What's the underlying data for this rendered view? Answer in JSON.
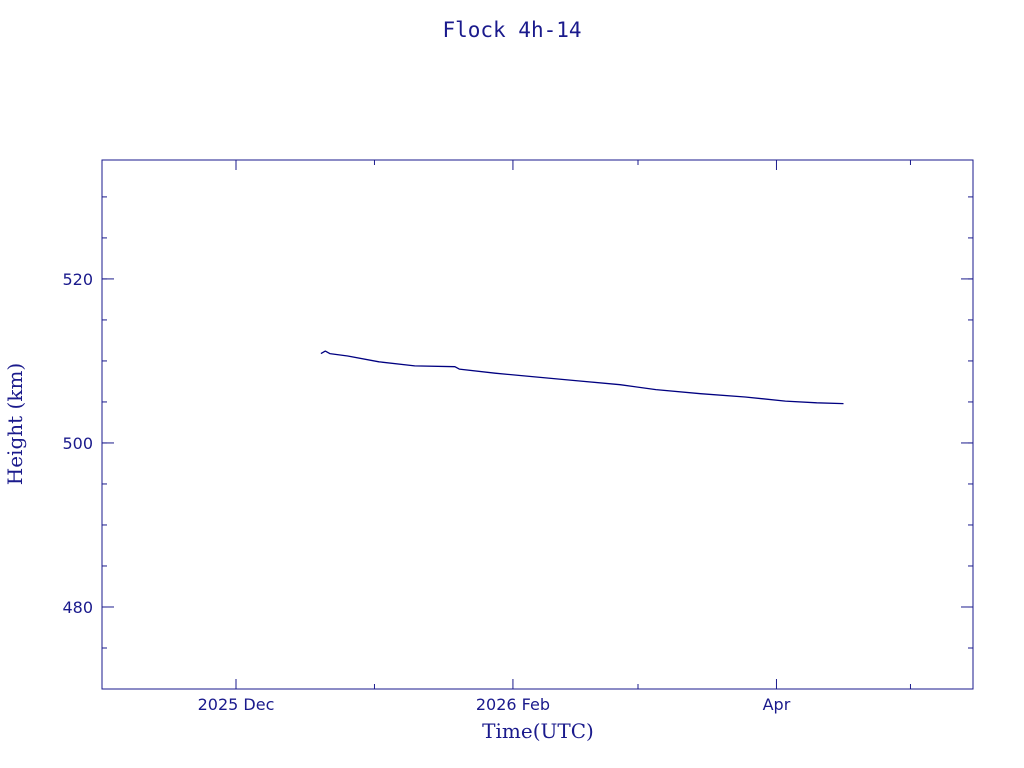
{
  "colors": {
    "axis": "#1a1a8c",
    "series": "#000080",
    "background": "#ffffff"
  },
  "chart_data": {
    "type": "line",
    "title": "Flock 4h-14",
    "xlabel": "Time(UTC)",
    "ylabel": "Height (km)",
    "x_kind": "date",
    "xlim": [
      "2025-11-01",
      "2026-05-15"
    ],
    "ylim": [
      470,
      534.5
    ],
    "x_ticks": [
      {
        "value": "2025-12-01",
        "label": "2025 Dec"
      },
      {
        "value": "2026-02-01",
        "label": "2026 Feb"
      },
      {
        "value": "2026-04-01",
        "label": "Apr"
      }
    ],
    "x_minor_ticks": [
      "2026-01-01",
      "2026-03-01",
      "2026-05-01"
    ],
    "y_ticks": [
      {
        "value": 480,
        "label": "480"
      },
      {
        "value": 500,
        "label": "500"
      },
      {
        "value": 520,
        "label": "520"
      }
    ],
    "y_minor_step": 5,
    "grid": false,
    "series": [
      {
        "x": [
          "2025-12-20",
          "2025-12-21",
          "2025-12-22",
          "2025-12-26",
          "2026-01-02",
          "2026-01-10",
          "2026-01-19",
          "2026-01-20",
          "2026-01-28",
          "2026-02-05",
          "2026-02-15",
          "2026-02-25",
          "2026-03-05",
          "2026-03-15",
          "2026-03-25",
          "2026-04-03",
          "2026-04-10",
          "2026-04-16"
        ],
        "y": [
          510.9,
          511.2,
          510.9,
          510.6,
          509.9,
          509.4,
          509.3,
          509.0,
          508.5,
          508.1,
          507.6,
          507.1,
          506.5,
          506.0,
          505.6,
          505.1,
          504.9,
          504.8
        ]
      }
    ]
  }
}
